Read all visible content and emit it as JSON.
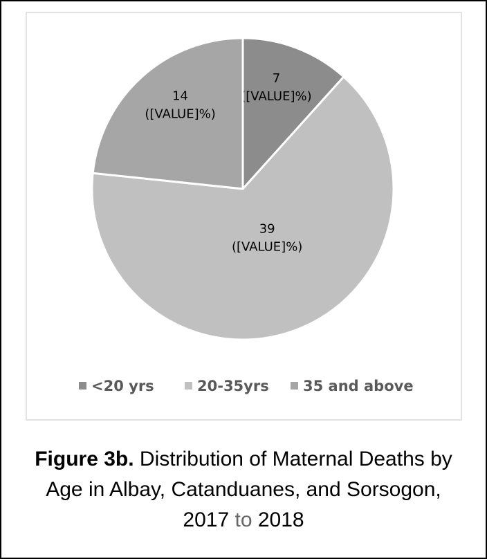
{
  "chart_data": {
    "type": "pie",
    "categories": [
      "<20 yrs",
      "20-35yrs",
      "35 and above"
    ],
    "values": [
      7,
      39,
      14
    ],
    "value_labels": [
      "7 ([VALUE]%)",
      "39 ([VALUE]%)",
      "14 ([VALUE]%)"
    ],
    "colors": [
      "#8c8c8c",
      "#c0c0c0",
      "#a6a6a6"
    ],
    "legend": "bottom"
  },
  "caption": {
    "label": "Figure 3b.",
    "text": "Distribution of Maternal Deaths by Age in Albay, Catanduanes, and Sorsogon, 2017",
    "to": "to",
    "end": "2018"
  }
}
